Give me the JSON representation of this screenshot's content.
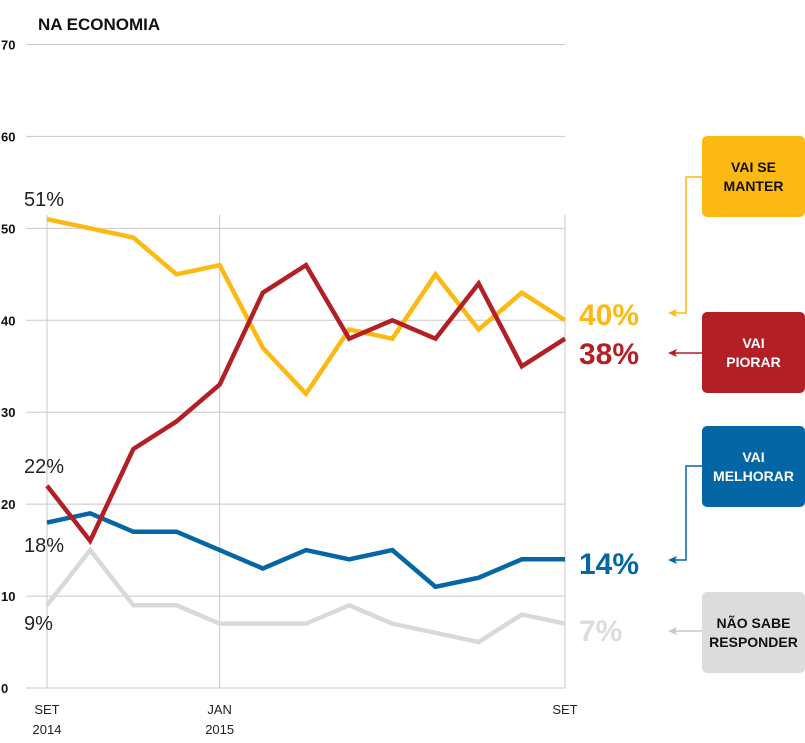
{
  "chart_data": {
    "type": "line",
    "title": "NA ECONOMIA",
    "xlabel": "",
    "ylabel": "",
    "ylim": [
      0,
      70
    ],
    "yticks": [
      0,
      10,
      20,
      30,
      40,
      50,
      60,
      70
    ],
    "grid": true,
    "x_count": 13,
    "xtick_labels": [
      {
        "index": 0,
        "lines": [
          "SET",
          "2014"
        ]
      },
      {
        "index": 4,
        "lines": [
          "JAN",
          "2015"
        ]
      },
      {
        "index": 12,
        "lines": [
          "SET"
        ]
      }
    ],
    "series": [
      {
        "name": "Vai se manter",
        "color": "#FDB913",
        "values": [
          51,
          50,
          49,
          45,
          46,
          37,
          32,
          39,
          38,
          45,
          39,
          43,
          40
        ],
        "start_label": "51%",
        "end_label": "40%"
      },
      {
        "name": "Vai piorar",
        "color": "#B21F24",
        "values": [
          22,
          16,
          26,
          29,
          33,
          43,
          46,
          38,
          40,
          38,
          44,
          35,
          38
        ],
        "start_label": "22%",
        "end_label": "38%"
      },
      {
        "name": "Vai melhorar",
        "color": "#0566A5",
        "values": [
          18,
          19,
          17,
          17,
          15,
          13,
          15,
          14,
          15,
          11,
          12,
          14,
          14
        ],
        "start_label": "18%",
        "end_label": "14%"
      },
      {
        "name": "Não sabe responder",
        "color": "#D9D9D9",
        "values": [
          9,
          15,
          9,
          9,
          7,
          7,
          7,
          9,
          7,
          6,
          5,
          8,
          7
        ],
        "start_label": "9%",
        "end_label": "7%"
      }
    ],
    "legend": [
      {
        "lines": [
          "VAI SE",
          "MANTER"
        ],
        "bg": "#FDB913",
        "fg": "#111111",
        "series": 0
      },
      {
        "lines": [
          "VAI",
          "PIORAR"
        ],
        "bg": "#B21F24",
        "fg": "#FFFFFF",
        "series": 1
      },
      {
        "lines": [
          "VAI",
          "MELHORAR"
        ],
        "bg": "#0566A5",
        "fg": "#FFFFFF",
        "series": 2
      },
      {
        "lines": [
          "NÃO SABE",
          "RESPONDER"
        ],
        "bg": "#DCDCDC",
        "fg": "#111111",
        "series": 3
      }
    ],
    "legend_placement": "right"
  }
}
